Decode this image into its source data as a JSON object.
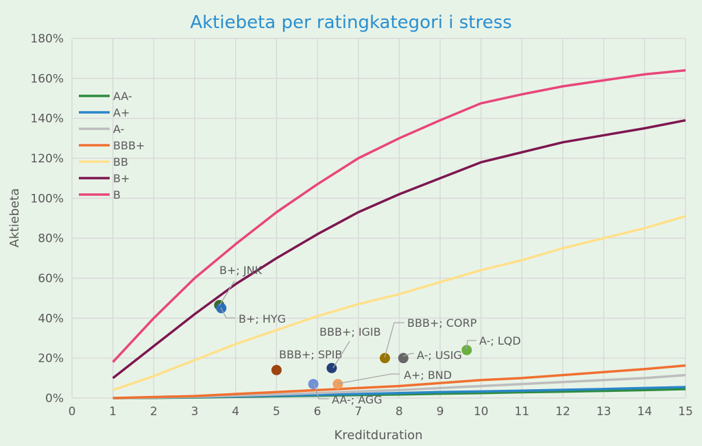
{
  "chart_data": {
    "type": "line",
    "title": "Aktiebeta per ratingkategori i stress",
    "xlabel": "Kreditduration",
    "ylabel": "Aktiebeta",
    "xlim": [
      0,
      15
    ],
    "ylim": [
      0,
      180
    ],
    "x_ticks": [
      "0",
      "1",
      "2",
      "3",
      "4",
      "5",
      "6",
      "7",
      "8",
      "9",
      "10",
      "11",
      "12",
      "13",
      "14",
      "15"
    ],
    "y_ticks": [
      "0%",
      "20%",
      "40%",
      "60%",
      "80%",
      "100%",
      "120%",
      "140%",
      "160%",
      "180%"
    ],
    "grid": true,
    "legend_position": "left",
    "x": [
      1,
      2,
      3,
      4,
      5,
      6,
      7,
      8,
      9,
      10,
      11,
      12,
      13,
      14,
      15
    ],
    "series": [
      {
        "name": "AA-",
        "color": "#2e8b3e",
        "values": [
          0,
          0.1,
          0.3,
          0.6,
          0.9,
          1.2,
          1.5,
          1.8,
          2.2,
          2.5,
          2.9,
          3.2,
          3.6,
          4,
          4.5
        ]
      },
      {
        "name": "A+",
        "color": "#2a86c8",
        "values": [
          0,
          0.2,
          0.5,
          0.8,
          1.2,
          1.6,
          2,
          2.5,
          3,
          3.3,
          3.7,
          4.1,
          4.5,
          5,
          5.5
        ]
      },
      {
        "name": "A-",
        "color": "#bdbdbd",
        "values": [
          0,
          0.3,
          0.7,
          1.2,
          1.8,
          2.5,
          3.3,
          4,
          5,
          6,
          7,
          8,
          9,
          10,
          11.5
        ]
      },
      {
        "name": "BBB+",
        "color": "#f07030",
        "values": [
          0,
          0.5,
          1,
          2,
          3,
          4,
          5,
          6,
          7.5,
          9,
          10,
          11.5,
          13,
          14.5,
          16.3
        ]
      },
      {
        "name": "BB",
        "color": "#ffe08a",
        "values": [
          4,
          11,
          19,
          27,
          34,
          41,
          47,
          52,
          58,
          64,
          69,
          75,
          80,
          85,
          91
        ]
      },
      {
        "name": "B+",
        "color": "#7d1650",
        "values": [
          10,
          26,
          42,
          57,
          70,
          82,
          93,
          102,
          110,
          118,
          123,
          128,
          131.5,
          135,
          139
        ]
      },
      {
        "name": "B",
        "color": "#e8467a",
        "values": [
          18,
          40,
          60,
          77,
          93,
          107,
          120,
          130,
          139,
          147.5,
          152,
          156,
          159,
          162,
          164
        ]
      }
    ],
    "points": [
      {
        "label": "B+; JNK",
        "x": 3.6,
        "y": 46.5,
        "color": "#3a6a2a"
      },
      {
        "label": "B+; HYG",
        "x": 3.65,
        "y": 45,
        "color": "#2a70b8"
      },
      {
        "label": "BBB+; SPIB",
        "x": 5.0,
        "y": 14,
        "color": "#9c4510"
      },
      {
        "label": "AA-; AGG",
        "x": 5.9,
        "y": 7,
        "color": "#7090d8"
      },
      {
        "label": "BBB+; IGIB",
        "x": 6.35,
        "y": 15,
        "color": "#223f78"
      },
      {
        "label": "A+; BND",
        "x": 6.5,
        "y": 7,
        "color": "#f0a060"
      },
      {
        "label": "BBB+; CORP",
        "x": 7.65,
        "y": 20,
        "color": "#9a7400"
      },
      {
        "label": "A-; USIG",
        "x": 8.1,
        "y": 20,
        "color": "#666666"
      },
      {
        "label": "A-; LQD",
        "x": 9.65,
        "y": 24,
        "color": "#6ab040"
      }
    ]
  }
}
